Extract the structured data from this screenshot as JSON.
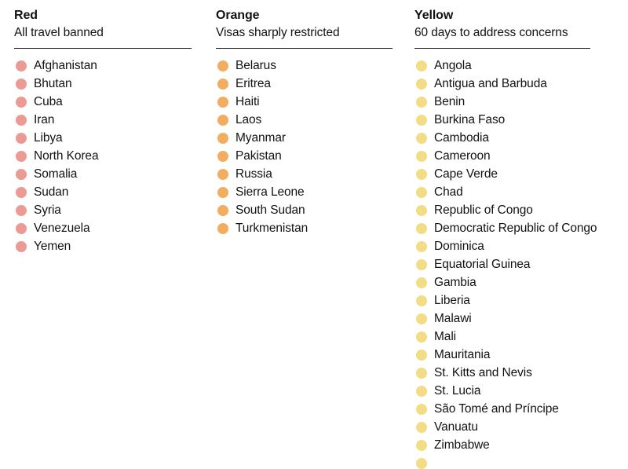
{
  "page": {
    "background": "#ffffff",
    "text_color": "#121212",
    "divider_color": "#1a1a1a"
  },
  "chart_data": {
    "type": "table",
    "title": "",
    "legend_position": "none",
    "categories": [
      "Red",
      "Orange",
      "Yellow"
    ],
    "series": [
      {
        "name": "Red",
        "subtitle": "All travel banned",
        "color": "#ec9a94",
        "count": 11,
        "items": [
          "Afghanistan",
          "Bhutan",
          "Cuba",
          "Iran",
          "Libya",
          "North Korea",
          "Somalia",
          "Sudan",
          "Syria",
          "Venezuela",
          "Yemen"
        ]
      },
      {
        "name": "Orange",
        "subtitle": "Visas sharply restricted",
        "color": "#f3ad60",
        "count": 10,
        "items": [
          "Belarus",
          "Eritrea",
          "Haiti",
          "Laos",
          "Myanmar",
          "Pakistan",
          "Russia",
          "Sierra Leone",
          "South Sudan",
          "Turkmenistan"
        ]
      },
      {
        "name": "Yellow",
        "subtitle": "60 days to address concerns",
        "color": "#f2dc86",
        "count": 22,
        "items": [
          "Angola",
          "Antigua and Barbuda",
          "Benin",
          "Burkina Faso",
          "Cambodia",
          "Cameroon",
          "Cape Verde",
          "Chad",
          "Republic of Congo",
          "Democratic Republic of Congo",
          "Dominica",
          "Equatorial Guinea",
          "Gambia",
          "Liberia",
          "Malawi",
          "Mali",
          "Mauritania",
          "St. Kitts and Nevis",
          "St. Lucia",
          "São Tomé and Príncipe",
          "Vanuatu",
          "Zimbabwe"
        ]
      }
    ]
  }
}
